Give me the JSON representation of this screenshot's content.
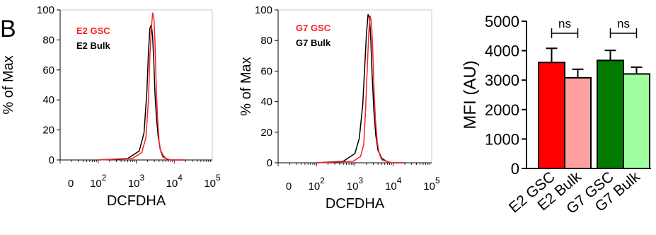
{
  "panel_label": "B",
  "chart_data": [
    {
      "type": "line",
      "subtype": "flow-cytometry-histogram",
      "xlabel": "DCFDHA",
      "ylabel": "% of Max",
      "xscale": "log",
      "xticks": [
        {
          "value": 0,
          "base": "0",
          "exp": ""
        },
        {
          "value": 100,
          "base": "10",
          "exp": "2"
        },
        {
          "value": 1000,
          "base": "10",
          "exp": "3"
        },
        {
          "value": 10000,
          "base": "10",
          "exp": "4"
        },
        {
          "value": 100000,
          "base": "10",
          "exp": "5"
        }
      ],
      "yticks": [
        0,
        20,
        40,
        60,
        80,
        100
      ],
      "ylim": [
        0,
        100
      ],
      "legend_position": "top-left",
      "series": [
        {
          "name": "E2 GSC",
          "color": "#ff2020",
          "x": [
            100,
            800,
            1400,
            1800,
            2100,
            2300,
            2500,
            2700,
            2900,
            3100,
            3300,
            3600,
            4000,
            4500,
            5000,
            6000,
            8000,
            20000
          ],
          "y": [
            0,
            1,
            5,
            15,
            40,
            70,
            88,
            98,
            95,
            80,
            55,
            30,
            12,
            5,
            2,
            1,
            0,
            0
          ]
        },
        {
          "name": "E2 Bulk",
          "color": "#000000",
          "x": [
            100,
            600,
            1200,
            1600,
            1900,
            2100,
            2300,
            2500,
            2700,
            2900,
            3100,
            3400,
            3800,
            4300,
            5000,
            6000,
            8000,
            20000
          ],
          "y": [
            0,
            1,
            6,
            18,
            45,
            72,
            88,
            90,
            82,
            65,
            45,
            28,
            15,
            7,
            3,
            1,
            0,
            0
          ]
        }
      ]
    },
    {
      "type": "line",
      "subtype": "flow-cytometry-histogram",
      "xlabel": "DCFDHA",
      "ylabel": "% of Max",
      "xscale": "log",
      "xticks": [
        {
          "value": 0,
          "base": "0",
          "exp": ""
        },
        {
          "value": 100,
          "base": "10",
          "exp": "2"
        },
        {
          "value": 1000,
          "base": "10",
          "exp": "3"
        },
        {
          "value": 10000,
          "base": "10",
          "exp": "4"
        },
        {
          "value": 100000,
          "base": "10",
          "exp": "5"
        }
      ],
      "yticks": [
        0,
        20,
        40,
        60,
        80,
        100
      ],
      "ylim": [
        0,
        100
      ],
      "legend_position": "top-left",
      "series": [
        {
          "name": "G7 GSC",
          "color": "#ff2020",
          "x": [
            100,
            900,
            1400,
            1700,
            1900,
            2100,
            2300,
            2500,
            2700,
            2900,
            3100,
            3400,
            3800,
            4300,
            5000,
            6500,
            9000,
            20000
          ],
          "y": [
            0,
            1,
            4,
            12,
            35,
            62,
            85,
            96,
            92,
            76,
            52,
            30,
            14,
            6,
            2,
            1,
            0,
            0
          ]
        },
        {
          "name": "G7 Bulk",
          "color": "#000000",
          "x": [
            100,
            500,
            1000,
            1300,
            1600,
            1800,
            2000,
            2200,
            2400,
            2600,
            2800,
            3100,
            3500,
            4000,
            5000,
            6500,
            9000,
            20000
          ],
          "y": [
            0,
            1,
            6,
            16,
            38,
            62,
            84,
            97,
            95,
            80,
            58,
            35,
            18,
            8,
            3,
            1,
            0,
            0
          ]
        }
      ]
    },
    {
      "type": "bar",
      "ylabel": "MFI (AU)",
      "ylim": [
        0,
        5000
      ],
      "yticks": [
        0,
        1000,
        2000,
        3000,
        4000,
        5000
      ],
      "categories": [
        "E2 GSC",
        "E2 Bulk",
        "G7 GSC",
        "G7 Bulk"
      ],
      "values": [
        3600,
        3080,
        3670,
        3210
      ],
      "errors": [
        480,
        290,
        340,
        230
      ],
      "colors": [
        "#ff0000",
        "#ffa0a0",
        "#007a00",
        "#a0ffa0"
      ],
      "annotations": [
        {
          "text": "ns",
          "between": [
            0,
            1
          ]
        },
        {
          "text": "ns",
          "between": [
            2,
            3
          ]
        }
      ]
    }
  ]
}
